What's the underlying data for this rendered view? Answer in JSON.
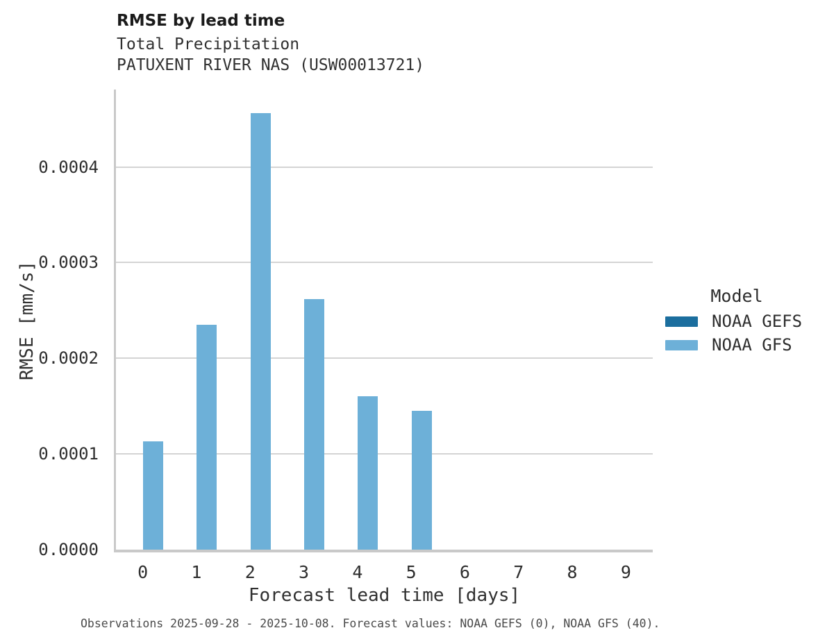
{
  "header": {
    "title": "RMSE by lead time",
    "subtitle_variable": "Total Precipitation",
    "subtitle_station": "PATUXENT RIVER NAS (USW00013721)"
  },
  "axes": {
    "x_label": "Forecast lead time [days]",
    "y_label": "RMSE [mm/s]"
  },
  "legend": {
    "title": "Model",
    "entries": [
      {
        "label": "NOAA GEFS",
        "color": "#1b6e9e"
      },
      {
        "label": "NOAA GFS",
        "color": "#6db0d8"
      }
    ]
  },
  "caption": "Observations 2025-09-28 - 2025-10-08. Forecast values: NOAA GEFS (0), NOAA GFS (40).",
  "style": {
    "background": "#ffffff",
    "grid_color": "#d4d4d4",
    "axis_color": "#c9c9c9",
    "gefs_color": "#1b6e9e",
    "gfs_color": "#6db0d8"
  },
  "chart_data": {
    "type": "bar",
    "title": "RMSE by lead time",
    "subtitle": [
      "Total Precipitation",
      "PATUXENT RIVER NAS (USW00013721)"
    ],
    "xlabel": "Forecast lead time [days]",
    "ylabel": "RMSE [mm/s]",
    "categories": [
      0,
      1,
      2,
      3,
      4,
      5,
      6,
      7,
      8,
      9
    ],
    "series": [
      {
        "name": "NOAA GEFS",
        "color": "#1b6e9e",
        "values": [
          0,
          0,
          0,
          0,
          0,
          0,
          0,
          0,
          0,
          0
        ]
      },
      {
        "name": "NOAA GFS",
        "color": "#6db0d8",
        "values": [
          0.000113,
          0.000235,
          0.000456,
          0.000262,
          0.00016,
          0.000145,
          0,
          0,
          0,
          0
        ]
      }
    ],
    "ylim": [
      0,
      0.000481
    ],
    "yticks": [
      0,
      0.0001,
      0.0002,
      0.0003,
      0.0004
    ],
    "ytick_labels": [
      "0.0000",
      "0.0001",
      "0.0002",
      "0.0003",
      "0.0004"
    ],
    "xtick_labels": [
      "0",
      "1",
      "2",
      "3",
      "4",
      "5",
      "6",
      "7",
      "8",
      "9"
    ],
    "grid": "horizontal",
    "legend_position": "right",
    "legend_title": "Model",
    "caption": "Observations 2025-09-28 - 2025-10-08. Forecast values: NOAA GEFS (0), NOAA GFS (40)."
  }
}
